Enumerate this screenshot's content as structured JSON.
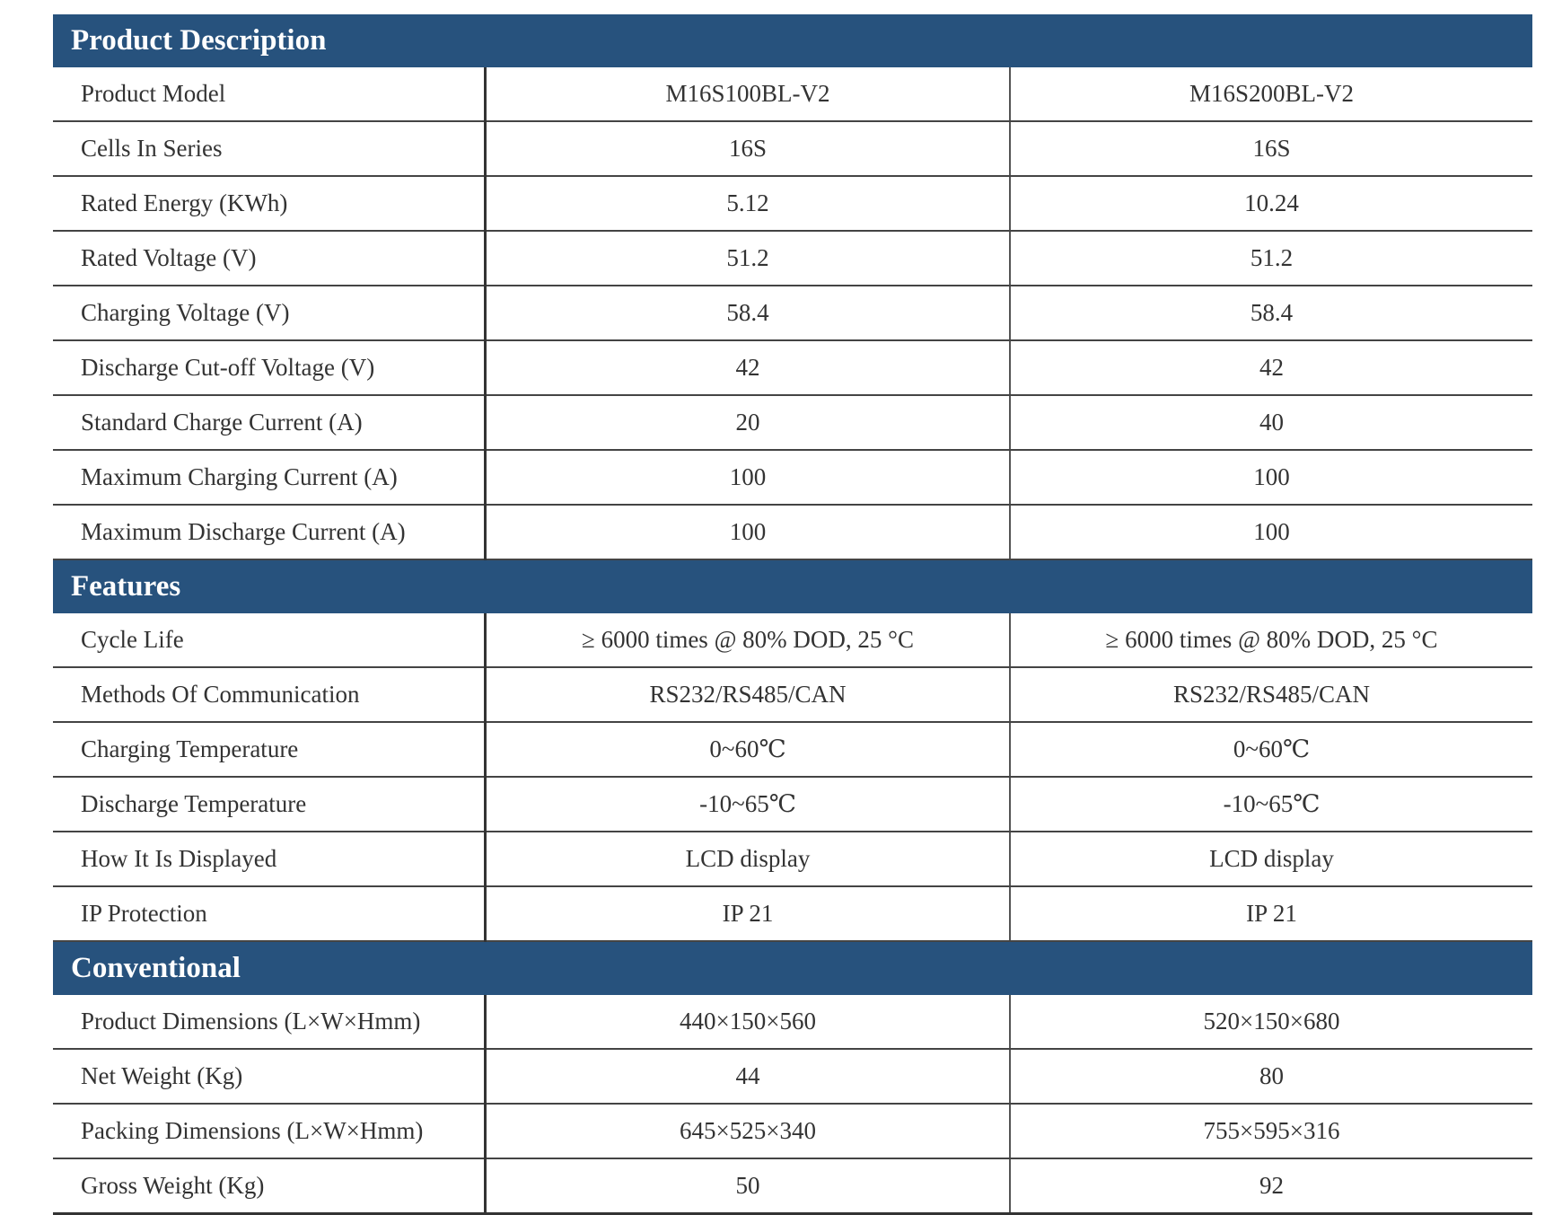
{
  "sections": [
    {
      "title": "Product Description",
      "rows": [
        {
          "label": "Product Model",
          "v1": "M16S100BL-V2",
          "v2": "M16S200BL-V2"
        },
        {
          "label": "Cells In Series",
          "v1": "16S",
          "v2": "16S"
        },
        {
          "label": "Rated Energy (KWh)",
          "v1": "5.12",
          "v2": "10.24"
        },
        {
          "label": "Rated Voltage (V)",
          "v1": "51.2",
          "v2": "51.2"
        },
        {
          "label": "Charging Voltage (V)",
          "v1": "58.4",
          "v2": "58.4"
        },
        {
          "label": "Discharge Cut-off Voltage (V)",
          "v1": "42",
          "v2": "42"
        },
        {
          "label": "Standard Charge Current (A)",
          "v1": "20",
          "v2": "40"
        },
        {
          "label": "Maximum Charging Current (A)",
          "v1": "100",
          "v2": "100"
        },
        {
          "label": "Maximum Discharge Current (A)",
          "v1": "100",
          "v2": "100"
        }
      ]
    },
    {
      "title": "Features",
      "rows": [
        {
          "label": "Cycle Life",
          "v1": "≥ 6000 times @ 80% DOD, 25 °C",
          "v2": "≥ 6000 times @ 80% DOD, 25 °C"
        },
        {
          "label": "Methods Of Communication",
          "v1": "RS232/RS485/CAN",
          "v2": "RS232/RS485/CAN"
        },
        {
          "label": "Charging Temperature",
          "v1": "0~60℃",
          "v2": "0~60℃"
        },
        {
          "label": "Discharge Temperature",
          "v1": "-10~65℃",
          "v2": "-10~65℃"
        },
        {
          "label": "How It Is Displayed",
          "v1": "LCD display",
          "v2": "LCD display"
        },
        {
          "label": "IP Protection",
          "v1": "IP 21",
          "v2": "IP 21"
        }
      ]
    },
    {
      "title": "Conventional",
      "rows": [
        {
          "label": "Product Dimensions (L×W×Hmm)",
          "v1": "440×150×560",
          "v2": "520×150×680"
        },
        {
          "label": "Net Weight (Kg)",
          "v1": "44",
          "v2": "80"
        },
        {
          "label": "Packing Dimensions (L×W×Hmm)",
          "v1": "645×525×340",
          "v2": "755×595×316"
        },
        {
          "label": "Gross Weight (Kg)",
          "v1": "50",
          "v2": "92"
        }
      ]
    }
  ],
  "colors": {
    "header_background": "#27527d",
    "header_text": "#ffffff",
    "body_text": "#333333"
  }
}
